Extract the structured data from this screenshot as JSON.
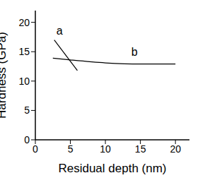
{
  "chart_data": {
    "type": "line",
    "x_label": "Residual depth (nm)",
    "y_label": "Hardness (GPa)",
    "series": [
      {
        "name": "a",
        "color": "#000000",
        "x": [
          2.7,
          6.0
        ],
        "values": [
          17.0,
          11.8
        ]
      },
      {
        "name": "b",
        "color": "#000000",
        "x": [
          2.5,
          5,
          10,
          15,
          20
        ],
        "values": [
          13.9,
          13.6,
          13.1,
          12.9,
          12.9
        ]
      }
    ],
    "xlim": [
      0,
      22
    ],
    "ylim": [
      0,
      22
    ],
    "xticks": [
      0,
      5,
      10,
      15,
      20
    ],
    "yticks": [
      0,
      5,
      10,
      15,
      20
    ],
    "grid": false
  }
}
